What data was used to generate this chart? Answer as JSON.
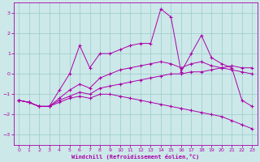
{
  "title": "",
  "xlabel": "Windchill (Refroidissement éolien,°C)",
  "ylabel": "",
  "bg_color": "#cce8e8",
  "line_color": "#aa00aa",
  "grid_color": "#99cccc",
  "xlim": [
    -0.5,
    23.5
  ],
  "ylim": [
    -3.5,
    3.5
  ],
  "xticks": [
    0,
    1,
    2,
    3,
    4,
    5,
    6,
    7,
    8,
    9,
    10,
    11,
    12,
    13,
    14,
    15,
    16,
    17,
    18,
    19,
    20,
    21,
    22,
    23
  ],
  "yticks": [
    -3,
    -2,
    -1,
    0,
    1,
    2,
    3
  ],
  "line1_x": [
    0,
    1,
    2,
    3,
    4,
    5,
    6,
    7,
    8,
    9,
    10,
    11,
    12,
    13,
    14,
    15,
    16,
    17,
    18,
    19,
    20,
    21,
    22,
    23
  ],
  "line1_y": [
    -1.3,
    -1.4,
    -1.6,
    -1.6,
    -1.4,
    -1.2,
    -1.1,
    -1.2,
    -1.0,
    -1.0,
    -1.1,
    -1.2,
    -1.3,
    -1.4,
    -1.5,
    -1.6,
    -1.7,
    -1.8,
    -1.9,
    -2.0,
    -2.1,
    -2.3,
    -2.5,
    -2.7
  ],
  "line2_x": [
    0,
    1,
    2,
    3,
    4,
    5,
    6,
    7,
    8,
    9,
    10,
    11,
    12,
    13,
    14,
    15,
    16,
    17,
    18,
    19,
    20,
    21,
    22,
    23
  ],
  "line2_y": [
    -1.3,
    -1.4,
    -1.6,
    -1.6,
    -1.3,
    -1.1,
    -0.9,
    -1.0,
    -0.7,
    -0.6,
    -0.5,
    -0.4,
    -0.3,
    -0.2,
    -0.1,
    0.0,
    0.0,
    0.1,
    0.1,
    0.2,
    0.3,
    0.4,
    0.3,
    0.3
  ],
  "line3_x": [
    0,
    1,
    2,
    3,
    4,
    5,
    6,
    7,
    8,
    9,
    10,
    11,
    12,
    13,
    14,
    15,
    16,
    17,
    18,
    19,
    20,
    21,
    22,
    23
  ],
  "line3_y": [
    -1.3,
    -1.4,
    -1.6,
    -1.6,
    -1.2,
    -0.8,
    -0.5,
    -0.7,
    -0.2,
    0.0,
    0.2,
    0.3,
    0.4,
    0.5,
    0.6,
    0.5,
    0.3,
    0.5,
    0.6,
    0.4,
    0.3,
    0.2,
    0.1,
    0.0
  ],
  "line4_x": [
    0,
    1,
    2,
    3,
    4,
    5,
    6,
    7,
    8,
    9,
    10,
    11,
    12,
    13,
    14,
    15,
    16,
    17,
    18,
    19,
    20,
    21,
    22,
    23
  ],
  "line4_y": [
    -1.3,
    -1.4,
    -1.6,
    -1.6,
    -0.8,
    0.0,
    1.4,
    0.3,
    1.0,
    1.0,
    1.2,
    1.4,
    1.5,
    1.5,
    3.2,
    2.8,
    0.1,
    1.0,
    1.9,
    0.8,
    0.5,
    0.3,
    -1.3,
    -1.6
  ]
}
